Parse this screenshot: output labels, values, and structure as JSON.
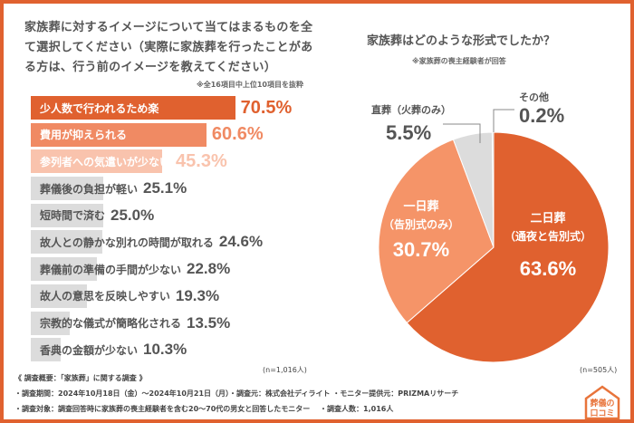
{
  "chart_data": [
    {
      "type": "bar",
      "orientation": "horizontal",
      "title": "家族葬に対するイメージについて当てはまるものを全て選択してください（実際に家族葬を行ったことがある方は、行う前のイメージを教えてください）",
      "note": "※全16項目中上位10項目を抜粋",
      "sample": "(n=1,016人)",
      "categories": [
        "少人数で行われるため楽",
        "費用が抑えられる",
        "参列者への気遣いが少ない",
        "葬儀後の負担が軽い",
        "短時間で済む",
        "故人との静かな別れの時間が取れる",
        "葬儀前の準備の手間が少ない",
        "故人の意思を反映しやすい",
        "宗教的な儀式が簡略化される",
        "香典の金額が少ない"
      ],
      "values": [
        70.5,
        60.6,
        45.3,
        25.1,
        25.0,
        24.6,
        22.8,
        19.3,
        13.5,
        10.3
      ],
      "value_labels": [
        "70.5%",
        "60.6%",
        "45.3%",
        "25.1%",
        "25.0%",
        "24.6%",
        "22.8%",
        "19.3%",
        "13.5%",
        "10.3%"
      ],
      "colors": [
        "#e0612f",
        "#f08a63",
        "#f9c3ad",
        "#dcdcdc",
        "#dcdcdc",
        "#dcdcdc",
        "#dcdcdc",
        "#dcdcdc",
        "#dcdcdc",
        "#dcdcdc"
      ],
      "value_colors": [
        "#e0612f",
        "#f08a63",
        "#f9c3ad",
        "#555555",
        "#555555",
        "#555555",
        "#555555",
        "#555555",
        "#555555",
        "#555555"
      ]
    },
    {
      "type": "pie",
      "title": "家族葬はどのような形式でしたか？",
      "note": "※家族葬の喪主経験者が回答",
      "sample": "(n=505人)",
      "slices": [
        {
          "label": "二日葬",
          "sublabel": "（通夜と告別式）",
          "value": 63.6,
          "value_label": "63.6%",
          "color": "#e0612f"
        },
        {
          "label": "一日葬",
          "sublabel": "（告別式のみ）",
          "value": 30.7,
          "value_label": "30.7%",
          "color": "#f59468"
        },
        {
          "label": "直葬（火葬のみ）",
          "sublabel": "",
          "value": 5.5,
          "value_label": "5.5%",
          "color": "#dcdcdc"
        },
        {
          "label": "その他",
          "sublabel": "",
          "value": 0.2,
          "value_label": "0.2%",
          "color": "#c8c8c8"
        }
      ]
    }
  ],
  "footer": {
    "heading": "《 調査概要：「家族葬」に関する調査 》",
    "line1": "・調査期間：2024年10月18日（金）～2024年10月21日（月）・調査元：株式会社ディライト ・モニター提供元：PRIZMAリサーチ",
    "line2": "・調査対象：調査回答時に家族葬の喪主経験者を含む20～70代の男女と回答したモニター　 ・調査人数：1,016人"
  },
  "logo": {
    "text": "葬儀の口コミ",
    "color": "#e8743b"
  }
}
